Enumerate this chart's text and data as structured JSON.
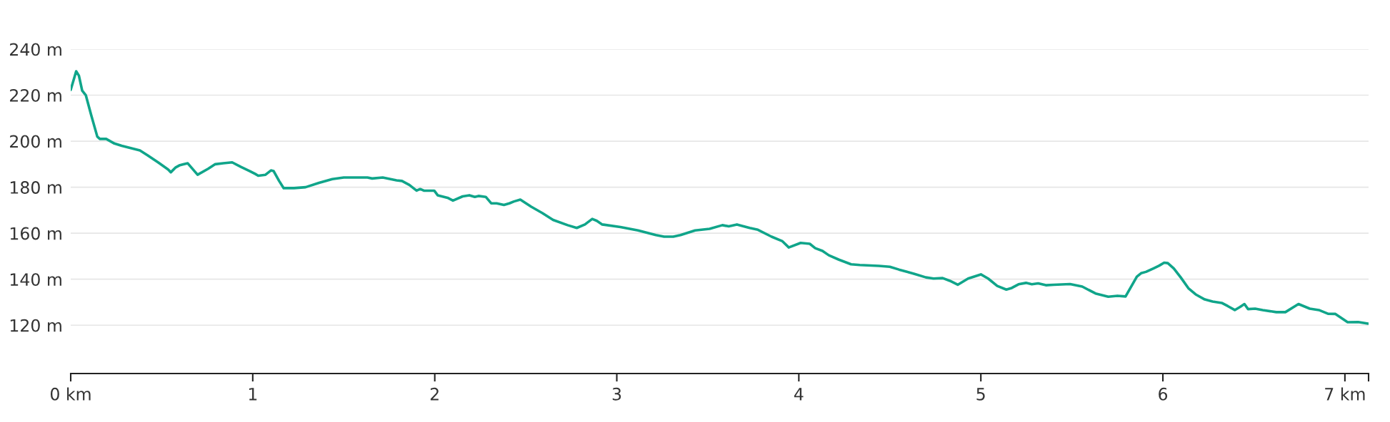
{
  "chart_data": {
    "type": "line",
    "xlim": [
      0,
      7.13
    ],
    "xticks": [
      {
        "value": 0,
        "label": "0 km"
      },
      1,
      2,
      3,
      4,
      5,
      6,
      {
        "value": 7,
        "label": "7 km"
      },
      {
        "value": 7.13,
        "label": null
      }
    ],
    "ylim": [
      99,
      240
    ],
    "yticks": [
      {
        "value": 120,
        "label": "120 m"
      },
      {
        "value": 140,
        "label": "140 m"
      },
      {
        "value": 160,
        "label": "160 m"
      },
      {
        "value": 180,
        "label": "180 m"
      },
      {
        "value": 200,
        "label": "200 m"
      },
      {
        "value": 220,
        "label": "220 m"
      },
      {
        "value": 240,
        "label": "240 m"
      }
    ],
    "grid": "y",
    "line_style": "solid",
    "series": [
      {
        "color": "#10a58a",
        "x": [
          0,
          0.03,
          0.045,
          0.063,
          0.083,
          0.112,
          0.146,
          0.16,
          0.195,
          0.24,
          0.28,
          0.33,
          0.38,
          0.42,
          0.48,
          0.535,
          0.55,
          0.575,
          0.6,
          0.643,
          0.697,
          0.755,
          0.794,
          0.838,
          0.887,
          0.935,
          0.984,
          1.013,
          1.03,
          1.07,
          1.1,
          1.115,
          1.145,
          1.17,
          1.227,
          1.29,
          1.364,
          1.437,
          1.5,
          1.63,
          1.656,
          1.714,
          1.79,
          1.82,
          1.86,
          1.9,
          1.92,
          1.94,
          1.997,
          2.016,
          2.07,
          2.1,
          2.153,
          2.19,
          2.22,
          2.24,
          2.28,
          2.31,
          2.34,
          2.38,
          2.41,
          2.435,
          2.47,
          2.53,
          2.59,
          2.65,
          2.73,
          2.78,
          2.825,
          2.865,
          2.89,
          2.92,
          3.02,
          3.117,
          3.215,
          3.26,
          3.31,
          3.35,
          3.43,
          3.51,
          3.58,
          3.615,
          3.66,
          3.73,
          3.775,
          3.85,
          3.91,
          3.945,
          4.01,
          4.06,
          4.09,
          4.13,
          4.165,
          4.22,
          4.287,
          4.335,
          4.44,
          4.5,
          4.55,
          4.632,
          4.698,
          4.74,
          4.79,
          4.83,
          4.873,
          4.93,
          5.0,
          5.04,
          5.09,
          5.14,
          5.17,
          5.207,
          5.248,
          5.28,
          5.315,
          5.357,
          5.4,
          5.49,
          5.557,
          5.63,
          5.7,
          5.75,
          5.795,
          5.857,
          5.88,
          5.907,
          5.948,
          5.98,
          6.007,
          6.027,
          6.06,
          6.098,
          6.14,
          6.18,
          6.23,
          6.273,
          6.323,
          6.357,
          6.395,
          6.423,
          6.448,
          6.468,
          6.507,
          6.548,
          6.623,
          6.673,
          6.745,
          6.807,
          6.857,
          6.907,
          6.948,
          7.015,
          7.073,
          7.127
        ],
        "values": [
          222.3,
          230.4,
          228.5,
          222,
          220,
          211.5,
          202,
          201,
          201,
          199,
          198,
          197,
          196,
          194,
          190.8,
          187.7,
          186.5,
          188.5,
          189.6,
          190.4,
          185.4,
          188,
          190,
          190.4,
          190.8,
          188.8,
          187,
          185.8,
          185,
          185.4,
          187.3,
          187,
          182.7,
          179.6,
          179.6,
          180,
          181.9,
          183.5,
          184.2,
          184.2,
          183.8,
          184.2,
          183,
          182.7,
          181,
          178.5,
          179.2,
          178.5,
          178.5,
          176.5,
          175.4,
          174.2,
          176,
          176.5,
          175.8,
          176.2,
          175.8,
          173,
          173,
          172.3,
          173,
          173.8,
          174.6,
          171.5,
          168.8,
          165.8,
          163.5,
          162.3,
          163.8,
          166.2,
          165.4,
          163.8,
          162.7,
          161.2,
          159.2,
          158.5,
          158.5,
          159.2,
          161.2,
          161.9,
          163.5,
          163,
          163.8,
          162.3,
          161.5,
          158.5,
          156.5,
          153.8,
          155.8,
          155.4,
          153.5,
          152.3,
          150.4,
          148.5,
          146.5,
          146.2,
          145.8,
          145.4,
          144.2,
          142.4,
          140.8,
          140.3,
          140.5,
          139.3,
          137.6,
          140.3,
          142.1,
          140.3,
          137.1,
          135.5,
          136.2,
          137.8,
          138.4,
          137.8,
          138.2,
          137.4,
          137.6,
          137.9,
          136.8,
          133.8,
          132.4,
          132.8,
          132.5,
          141.1,
          142.6,
          143.2,
          144.7,
          145.9,
          147.2,
          147,
          144.7,
          140.8,
          136.1,
          133.4,
          131.2,
          130.3,
          129.7,
          128.3,
          126.6,
          127.9,
          129.2,
          127,
          127.2,
          126.6,
          125.7,
          125.7,
          129.2,
          127.2,
          126.6,
          125,
          124.9,
          121.3,
          121.4,
          120.7
        ]
      }
    ]
  }
}
